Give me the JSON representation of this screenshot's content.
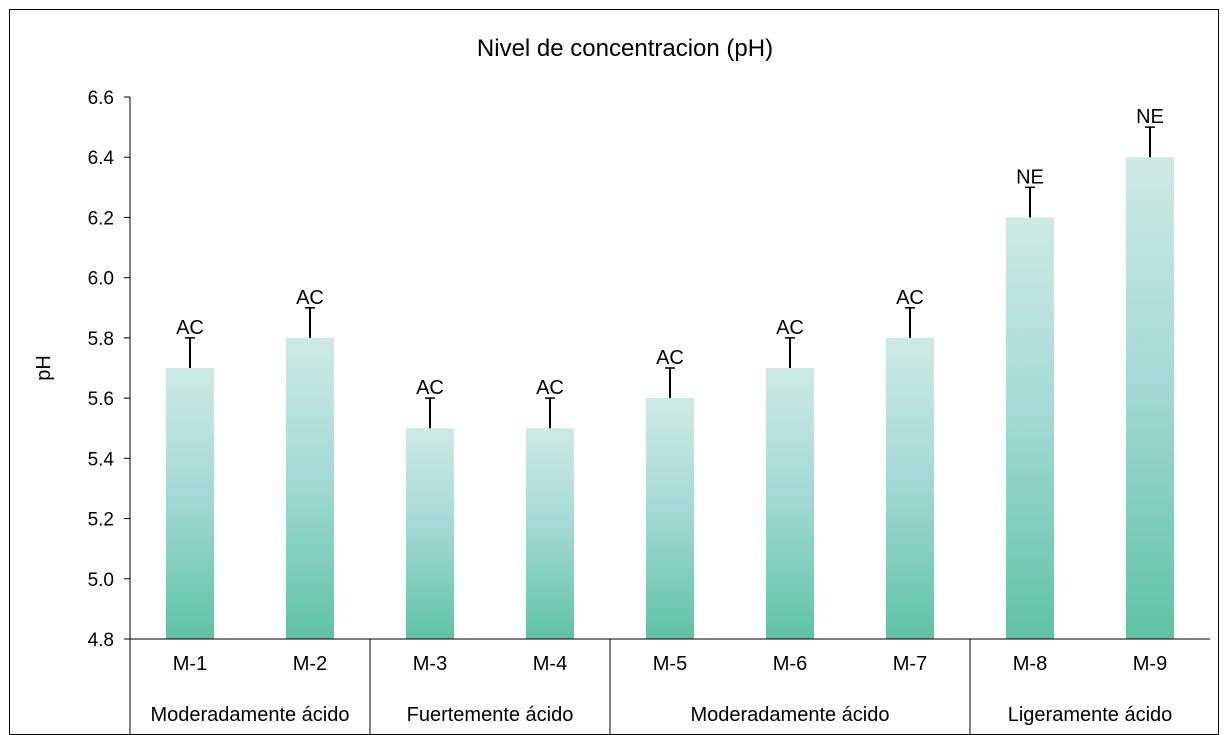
{
  "chart_data": {
    "type": "bar",
    "title": "Nivel de concentracion (pH)",
    "xlabel": "",
    "ylabel": "pH",
    "ylim": [
      4.8,
      6.6
    ],
    "yticks": [
      "4.8",
      "5.0",
      "5.2",
      "5.4",
      "5.6",
      "5.8",
      "6.0",
      "6.2",
      "6.4",
      "6.6"
    ],
    "grid": false,
    "legend": "none",
    "categories": [
      "M-1",
      "M-2",
      "M-3",
      "M-4",
      "M-5",
      "M-6",
      "M-7",
      "M-8",
      "M-9"
    ],
    "values": [
      5.7,
      5.8,
      5.5,
      5.5,
      5.6,
      5.7,
      5.8,
      6.2,
      6.4
    ],
    "error_plus": [
      0.1,
      0.1,
      0.1,
      0.1,
      0.1,
      0.1,
      0.1,
      0.1,
      0.1
    ],
    "data_labels": [
      "AC",
      "AC",
      "AC",
      "AC",
      "AC",
      "AC",
      "AC",
      "NE",
      "NE"
    ],
    "groups": [
      {
        "label": "Moderadamente ácido",
        "categories": [
          "M-1",
          "M-2"
        ]
      },
      {
        "label": "Fuertemente ácido",
        "categories": [
          "M-3",
          "M-4"
        ]
      },
      {
        "label": "Moderadamente ácido",
        "categories": [
          "M-5",
          "M-6",
          "M-7"
        ]
      },
      {
        "label": "Ligeramente ácido",
        "categories": [
          "M-8",
          "M-9"
        ]
      }
    ],
    "colors": {
      "bar_top": "#cdeae2",
      "bar_mid": "#a6dad6",
      "bar_bottom": "#5ec3a2",
      "axis": "#000000"
    }
  }
}
